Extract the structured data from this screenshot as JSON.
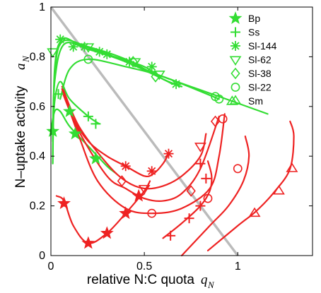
{
  "chart_data": {
    "type": "line",
    "xlabel": "relative N:C quota",
    "xlabel_symbol": "q",
    "xlabel_subscript": "N",
    "ylabel": "N–uptake activity",
    "ylabel_symbol": "a",
    "ylabel_subscript": "N",
    "xlim": [
      0,
      1.4
    ],
    "ylim": [
      0,
      1
    ],
    "xticks": [
      0,
      0.5,
      1
    ],
    "xtick_labels": [
      "0",
      "0.5",
      "1"
    ],
    "yticks": [
      0,
      0.2,
      0.4,
      0.6,
      0.8,
      1
    ],
    "ytick_labels": [
      "0",
      "0.2",
      "0.4",
      "0.6",
      "0.8",
      "1"
    ],
    "grid": false,
    "legend_position": "top-right",
    "colors": {
      "green": "#33dd33",
      "red": "#ee2222",
      "diagonal": "#bbbbbb"
    },
    "diagonal_line": {
      "x": [
        0,
        1
      ],
      "y": [
        1,
        0
      ]
    },
    "legend": [
      {
        "label": "Bp",
        "marker": "star"
      },
      {
        "label": "Ss",
        "marker": "plus"
      },
      {
        "label": "Sl-144",
        "marker": "asterisk"
      },
      {
        "label": "Sl-62",
        "marker": "triangle-down"
      },
      {
        "label": "Sl-38",
        "marker": "diamond"
      },
      {
        "label": "Sl-22",
        "marker": "circle"
      },
      {
        "label": "Sm",
        "marker": "triangle-up"
      }
    ],
    "series": [
      {
        "label": "Bp",
        "marker": "star",
        "color": "green",
        "line": [
          [
            0.0,
            0.5
          ],
          [
            0.02,
            0.58
          ],
          [
            0.05,
            0.58
          ],
          [
            0.1,
            0.52
          ],
          [
            0.2,
            0.44
          ],
          [
            0.3,
            0.36
          ],
          [
            0.35,
            0.33
          ]
        ],
        "points": [
          [
            0.01,
            0.5
          ],
          [
            0.1,
            0.58
          ],
          [
            0.13,
            0.49
          ],
          [
            0.24,
            0.39
          ]
        ]
      },
      {
        "label": "Bp",
        "marker": "star",
        "color": "red",
        "line": [
          [
            0.03,
            0.24
          ],
          [
            0.07,
            0.22
          ],
          [
            0.12,
            0.12
          ],
          [
            0.2,
            0.05
          ],
          [
            0.3,
            0.09
          ],
          [
            0.4,
            0.17
          ],
          [
            0.5,
            0.26
          ],
          [
            0.53,
            0.3
          ]
        ],
        "points": [
          [
            0.07,
            0.21
          ],
          [
            0.2,
            0.05
          ],
          [
            0.3,
            0.09
          ],
          [
            0.4,
            0.17
          ],
          [
            0.47,
            0.24
          ]
        ]
      },
      {
        "label": "Ss",
        "marker": "plus",
        "color": "green",
        "line": [
          [
            0.01,
            0.47
          ],
          [
            0.02,
            0.62
          ],
          [
            0.05,
            0.7
          ],
          [
            0.1,
            0.63
          ],
          [
            0.2,
            0.56
          ],
          [
            0.26,
            0.53
          ]
        ],
        "points": [
          [
            0.04,
            0.65
          ],
          [
            0.2,
            0.56
          ],
          [
            0.24,
            0.53
          ]
        ]
      },
      {
        "label": "Ss",
        "marker": "plus",
        "color": "red",
        "line": [
          [
            0.6,
            0.07
          ],
          [
            0.7,
            0.13
          ],
          [
            0.8,
            0.2
          ],
          [
            0.85,
            0.26
          ],
          [
            0.86,
            0.32
          ],
          [
            0.84,
            0.38
          ]
        ],
        "points": [
          [
            0.64,
            0.08
          ],
          [
            0.74,
            0.15
          ],
          [
            0.8,
            0.2
          ],
          [
            0.83,
            0.31
          ],
          [
            0.8,
            0.37
          ]
        ]
      },
      {
        "label": "Sl-144",
        "marker": "asterisk",
        "color": "green",
        "line": [
          [
            0.01,
            0.37
          ],
          [
            0.02,
            0.75
          ],
          [
            0.06,
            0.87
          ],
          [
            0.15,
            0.85
          ],
          [
            0.3,
            0.81
          ],
          [
            0.5,
            0.76
          ],
          [
            0.6,
            0.71
          ],
          [
            0.7,
            0.68
          ]
        ],
        "points": [
          [
            0.05,
            0.87
          ],
          [
            0.12,
            0.84
          ],
          [
            0.18,
            0.84
          ],
          [
            0.26,
            0.82
          ],
          [
            0.3,
            0.81
          ],
          [
            0.42,
            0.78
          ],
          [
            0.54,
            0.76
          ],
          [
            0.67,
            0.69
          ]
        ]
      },
      {
        "label": "Sl-144",
        "marker": "asterisk",
        "color": "red",
        "line": [
          [
            0.06,
            0.67
          ],
          [
            0.12,
            0.55
          ],
          [
            0.2,
            0.46
          ],
          [
            0.3,
            0.4
          ],
          [
            0.4,
            0.36
          ],
          [
            0.5,
            0.32
          ],
          [
            0.55,
            0.33
          ],
          [
            0.6,
            0.37
          ],
          [
            0.63,
            0.41
          ]
        ],
        "points": [
          [
            0.4,
            0.36
          ],
          [
            0.54,
            0.34
          ],
          [
            0.63,
            0.41
          ]
        ]
      },
      {
        "label": "Sl-62",
        "marker": "triangle-down",
        "color": "green",
        "line": [
          [
            0.01,
            0.4
          ],
          [
            0.02,
            0.72
          ],
          [
            0.06,
            0.86
          ],
          [
            0.2,
            0.84
          ],
          [
            0.4,
            0.79
          ],
          [
            0.6,
            0.71
          ],
          [
            0.7,
            0.68
          ]
        ],
        "points": [
          [
            0.01,
            0.82
          ],
          [
            0.2,
            0.84
          ],
          [
            0.45,
            0.78
          ],
          [
            0.58,
            0.73
          ]
        ]
      },
      {
        "label": "Sl-62",
        "marker": "triangle-down",
        "color": "red",
        "line": [
          [
            0.06,
            0.68
          ],
          [
            0.15,
            0.52
          ],
          [
            0.3,
            0.37
          ],
          [
            0.4,
            0.3
          ],
          [
            0.5,
            0.27
          ],
          [
            0.6,
            0.28
          ],
          [
            0.7,
            0.32
          ],
          [
            0.8,
            0.4
          ],
          [
            0.83,
            0.49
          ]
        ],
        "points": [
          [
            0.5,
            0.27
          ],
          [
            0.8,
            0.44
          ]
        ]
      },
      {
        "label": "Sl-38",
        "marker": "diamond",
        "color": "green",
        "line": [
          [
            0.01,
            0.46
          ],
          [
            0.02,
            0.7
          ],
          [
            0.07,
            0.85
          ],
          [
            0.2,
            0.83
          ],
          [
            0.4,
            0.78
          ],
          [
            0.6,
            0.71
          ],
          [
            0.65,
            0.69
          ]
        ],
        "points": [
          [
            0.44,
            0.78
          ],
          [
            0.56,
            0.72
          ]
        ]
      },
      {
        "label": "Sl-38",
        "marker": "diamond",
        "color": "red",
        "line": [
          [
            0.06,
            0.66
          ],
          [
            0.15,
            0.5
          ],
          [
            0.3,
            0.32
          ],
          [
            0.4,
            0.27
          ],
          [
            0.5,
            0.23
          ],
          [
            0.6,
            0.22
          ],
          [
            0.7,
            0.25
          ],
          [
            0.8,
            0.35
          ],
          [
            0.9,
            0.56
          ]
        ],
        "points": [
          [
            0.38,
            0.3
          ],
          [
            0.75,
            0.26
          ],
          [
            0.88,
            0.54
          ]
        ]
      },
      {
        "label": "Sl-22",
        "marker": "circle",
        "color": "green",
        "line": [
          [
            0.05,
            0.63
          ],
          [
            0.1,
            0.75
          ],
          [
            0.2,
            0.79
          ],
          [
            0.4,
            0.76
          ],
          [
            0.6,
            0.72
          ],
          [
            0.9,
            0.63
          ]
        ],
        "points": [
          [
            0.2,
            0.79
          ],
          [
            0.88,
            0.64
          ],
          [
            0.9,
            0.63
          ]
        ]
      },
      {
        "label": "Sl-22",
        "marker": "circle",
        "color": "red",
        "line": [
          [
            0.06,
            0.67
          ],
          [
            0.15,
            0.48
          ],
          [
            0.25,
            0.3
          ],
          [
            0.4,
            0.19
          ],
          [
            0.55,
            0.17
          ],
          [
            0.7,
            0.19
          ],
          [
            0.85,
            0.27
          ],
          [
            0.9,
            0.4
          ],
          [
            0.93,
            0.57
          ]
        ],
        "points": [
          [
            0.54,
            0.17
          ],
          [
            0.84,
            0.23
          ],
          [
            0.92,
            0.55
          ]
        ]
      },
      {
        "label": "Sl-22",
        "marker": "circle",
        "color": "red",
        "line": [
          [
            0.7,
            0.0
          ],
          [
            0.85,
            0.12
          ],
          [
            0.95,
            0.2
          ],
          [
            1.03,
            0.3
          ],
          [
            1.06,
            0.4
          ],
          [
            1.04,
            0.48
          ]
        ],
        "points": [
          [
            1.0,
            0.35
          ]
        ]
      },
      {
        "label": "Sm",
        "marker": "triangle-up",
        "color": "green",
        "line": [
          [
            0.4,
            0.78
          ],
          [
            0.6,
            0.72
          ],
          [
            0.9,
            0.64
          ],
          [
            1.16,
            0.57
          ]
        ],
        "points": [
          [
            0.97,
            0.62
          ]
        ]
      },
      {
        "label": "Sm",
        "marker": "triangle-up",
        "color": "red",
        "line": [
          [
            0.84,
            0.02
          ],
          [
            1.0,
            0.12
          ],
          [
            1.1,
            0.18
          ],
          [
            1.2,
            0.26
          ],
          [
            1.28,
            0.35
          ],
          [
            1.3,
            0.48
          ],
          [
            1.28,
            0.54
          ]
        ],
        "points": [
          [
            1.09,
            0.17
          ],
          [
            1.22,
            0.26
          ],
          [
            1.29,
            0.35
          ]
        ]
      }
    ]
  }
}
